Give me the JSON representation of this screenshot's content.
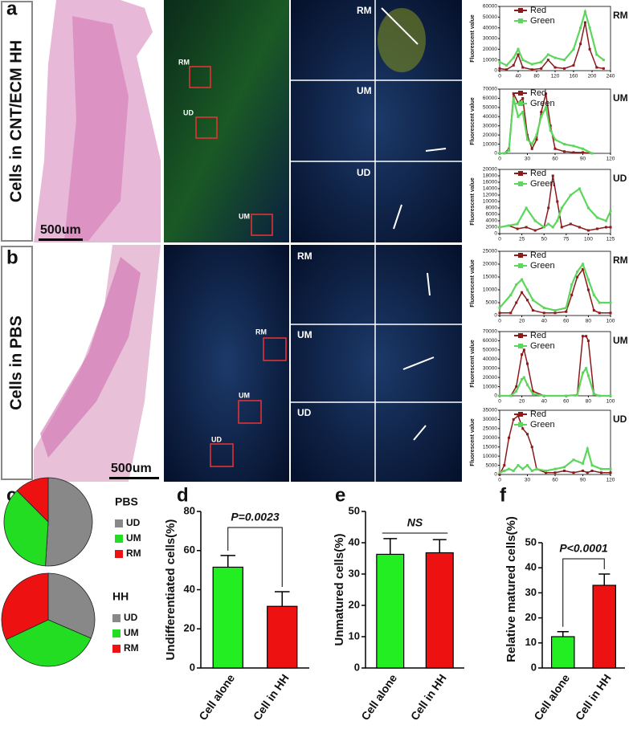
{
  "figure": {
    "panels": [
      "a",
      "b",
      "c",
      "d",
      "e",
      "f"
    ],
    "rows": [
      {
        "side_label": "Cells  in CNT/ECM HH",
        "scale_bar": "500um",
        "overview_labels": [
          "RM",
          "UD",
          "UM"
        ],
        "zoom_labels": [
          "RM",
          "UM",
          "UD"
        ]
      },
      {
        "side_label": "Cells  in PBS",
        "scale_bar": "500um",
        "overview_labels": [
          "RM",
          "UM",
          "UD"
        ],
        "zoom_labels": [
          "RM",
          "UM",
          "UD"
        ]
      }
    ]
  },
  "chart_data": [
    {
      "type": "line",
      "annotation": "RM",
      "ylabel": "Fluorescent value",
      "xlim": [
        0,
        240
      ],
      "xticks": [
        0,
        40,
        80,
        120,
        160,
        200,
        240
      ],
      "ylim": [
        0,
        60000
      ],
      "yticks": [
        0,
        10000,
        20000,
        30000,
        40000,
        50000,
        60000
      ],
      "x": [
        0,
        15,
        30,
        40,
        50,
        70,
        90,
        105,
        120,
        140,
        160,
        175,
        185,
        195,
        210,
        225
      ],
      "series": [
        {
          "name": "Red",
          "color": "#8b1a1a",
          "values": [
            2000,
            1000,
            5000,
            15000,
            3000,
            1000,
            2000,
            10000,
            3000,
            2000,
            5000,
            25000,
            45000,
            20000,
            3000,
            2000
          ]
        },
        {
          "name": "Green",
          "color": "#5cd65c",
          "values": [
            8000,
            5000,
            12000,
            20000,
            10000,
            6000,
            8000,
            15000,
            12000,
            10000,
            20000,
            40000,
            55000,
            40000,
            15000,
            10000
          ]
        }
      ]
    },
    {
      "type": "line",
      "annotation": "UM",
      "ylabel": "Fluorescent value",
      "xlim": [
        0,
        120
      ],
      "xticks": [
        0,
        30,
        60,
        90,
        120
      ],
      "ylim": [
        0,
        70000
      ],
      "yticks": [
        0,
        10000,
        20000,
        30000,
        40000,
        50000,
        60000,
        70000
      ],
      "x": [
        0,
        5,
        10,
        15,
        20,
        25,
        30,
        35,
        40,
        45,
        50,
        55,
        60,
        70,
        80,
        90,
        100
      ],
      "series": [
        {
          "name": "Red",
          "color": "#8b1a1a",
          "values": [
            0,
            0,
            5000,
            65000,
            55000,
            60000,
            20000,
            5000,
            15000,
            45000,
            65000,
            30000,
            5000,
            2000,
            1000,
            1000,
            0
          ]
        },
        {
          "name": "Green",
          "color": "#5cd65c",
          "values": [
            0,
            0,
            3000,
            60000,
            40000,
            45000,
            15000,
            10000,
            20000,
            40000,
            50000,
            25000,
            15000,
            10000,
            8000,
            5000,
            0
          ]
        }
      ]
    },
    {
      "type": "line",
      "annotation": "UD",
      "ylabel": "Fluorescent value",
      "xlim": [
        0,
        125
      ],
      "xticks": [
        0,
        25,
        50,
        75,
        100,
        125
      ],
      "ylim": [
        0,
        20000
      ],
      "yticks": [
        0,
        2000,
        4000,
        6000,
        8000,
        10000,
        12000,
        14000,
        16000,
        18000,
        20000
      ],
      "x": [
        0,
        10,
        20,
        30,
        40,
        50,
        55,
        60,
        65,
        70,
        80,
        90,
        100,
        110,
        120,
        125
      ],
      "series": [
        {
          "name": "Red",
          "color": "#8b1a1a",
          "values": [
            2000,
            2500,
            1500,
            2000,
            1000,
            2000,
            8000,
            18000,
            10000,
            2000,
            3000,
            2000,
            1000,
            1500,
            2000,
            2000
          ]
        },
        {
          "name": "Green",
          "color": "#5cd65c",
          "values": [
            2000,
            2500,
            3000,
            8000,
            4000,
            2000,
            3000,
            2000,
            4000,
            8000,
            12000,
            14000,
            8000,
            5000,
            4000,
            7000
          ]
        }
      ]
    },
    {
      "type": "line",
      "annotation": "RM",
      "ylabel": "Fluorescent value",
      "xlim": [
        0,
        100
      ],
      "xticks": [
        0,
        20,
        40,
        60,
        80,
        100
      ],
      "ylim": [
        0,
        25000
      ],
      "yticks": [
        0,
        5000,
        10000,
        15000,
        20000,
        25000
      ],
      "x": [
        0,
        10,
        15,
        20,
        25,
        30,
        40,
        50,
        60,
        65,
        70,
        75,
        80,
        85,
        90,
        100
      ],
      "series": [
        {
          "name": "Red",
          "color": "#8b1a1a",
          "values": [
            1000,
            1000,
            5000,
            9000,
            6000,
            2000,
            1000,
            1000,
            1500,
            8000,
            15000,
            18000,
            10000,
            2000,
            1000,
            1000
          ]
        },
        {
          "name": "Green",
          "color": "#5cd65c",
          "values": [
            3000,
            8000,
            12000,
            14000,
            10000,
            6000,
            3000,
            2000,
            3000,
            12000,
            17000,
            20000,
            14000,
            8000,
            5000,
            5000
          ]
        }
      ]
    },
    {
      "type": "line",
      "annotation": "UM",
      "ylabel": "Fluorescent value",
      "xlim": [
        0,
        100
      ],
      "xticks": [
        0,
        20,
        40,
        60,
        80,
        100
      ],
      "ylim": [
        0,
        70000
      ],
      "yticks": [
        0,
        10000,
        20000,
        30000,
        40000,
        50000,
        60000,
        70000
      ],
      "x": [
        0,
        10,
        15,
        20,
        22,
        25,
        30,
        40,
        60,
        70,
        75,
        78,
        80,
        85,
        90,
        100
      ],
      "series": [
        {
          "name": "Red",
          "color": "#8b1a1a",
          "values": [
            0,
            0,
            10000,
            45000,
            50000,
            35000,
            5000,
            0,
            0,
            1000,
            65000,
            65000,
            60000,
            2000,
            0,
            0
          ]
        },
        {
          "name": "Green",
          "color": "#5cd65c",
          "values": [
            0,
            0,
            5000,
            18000,
            20000,
            12000,
            2000,
            0,
            0,
            1000,
            25000,
            30000,
            22000,
            2000,
            0,
            0
          ]
        }
      ]
    },
    {
      "type": "line",
      "annotation": "UD",
      "ylabel": "Fluorescent value",
      "xlim": [
        0,
        120
      ],
      "xticks": [
        0,
        30,
        60,
        90,
        120
      ],
      "ylim": [
        0,
        35000
      ],
      "yticks": [
        0,
        5000,
        10000,
        15000,
        20000,
        25000,
        30000,
        35000
      ],
      "x": [
        0,
        5,
        10,
        15,
        20,
        25,
        30,
        35,
        40,
        50,
        60,
        70,
        80,
        90,
        95,
        100,
        110,
        120
      ],
      "series": [
        {
          "name": "Red",
          "color": "#8b1a1a",
          "values": [
            0,
            5000,
            20000,
            30000,
            32000,
            25000,
            22000,
            15000,
            3000,
            1000,
            1000,
            2000,
            1000,
            2000,
            1000,
            2000,
            1000,
            1000
          ]
        },
        {
          "name": "Green",
          "color": "#5cd65c",
          "values": [
            1000,
            2000,
            3000,
            2000,
            5000,
            3000,
            5000,
            2000,
            3000,
            2000,
            3000,
            4000,
            8000,
            6000,
            14000,
            5000,
            3000,
            3000
          ]
        }
      ]
    },
    {
      "type": "pie",
      "title": "PBS",
      "categories": [
        "UD",
        "UM",
        "RM"
      ],
      "values": [
        51,
        36.5,
        12.5
      ],
      "colors": [
        "#888888",
        "#22dd22",
        "#ee1111"
      ]
    },
    {
      "type": "pie",
      "title": "HH",
      "categories": [
        "UD",
        "UM",
        "RM"
      ],
      "values": [
        31.5,
        36.5,
        32
      ],
      "colors": [
        "#888888",
        "#22dd22",
        "#ee1111"
      ]
    },
    {
      "type": "bar",
      "ylabel": "Undifferentiated cells(%)",
      "annotation": "P=0.0023",
      "categories": [
        "Cell alone",
        "Cell in HH"
      ],
      "values": [
        51.5,
        31.5
      ],
      "errors": [
        6,
        7.5
      ],
      "colors": [
        "#22ee22",
        "#ee1111"
      ],
      "ylim": [
        0,
        80
      ],
      "yticks": [
        0,
        20,
        40,
        60,
        80
      ]
    },
    {
      "type": "bar",
      "ylabel": "Unmatured cells(%)",
      "annotation": "NS",
      "categories": [
        "Cell alone",
        "Cell in HH"
      ],
      "values": [
        36.3,
        36.8
      ],
      "errors": [
        5,
        4.2
      ],
      "colors": [
        "#22ee22",
        "#ee1111"
      ],
      "ylim": [
        0,
        50
      ],
      "yticks": [
        0,
        10,
        20,
        30,
        40,
        50
      ]
    },
    {
      "type": "bar",
      "ylabel": "Relative matured cells(%)",
      "annotation": "P<0.0001",
      "categories": [
        "Cell alone",
        "Cell in HH"
      ],
      "values": [
        12.5,
        33
      ],
      "errors": [
        2,
        4.5
      ],
      "colors": [
        "#22ee22",
        "#ee1111"
      ],
      "ylim": [
        0,
        50
      ],
      "yticks": [
        0,
        10,
        20,
        30,
        40,
        50
      ]
    }
  ]
}
